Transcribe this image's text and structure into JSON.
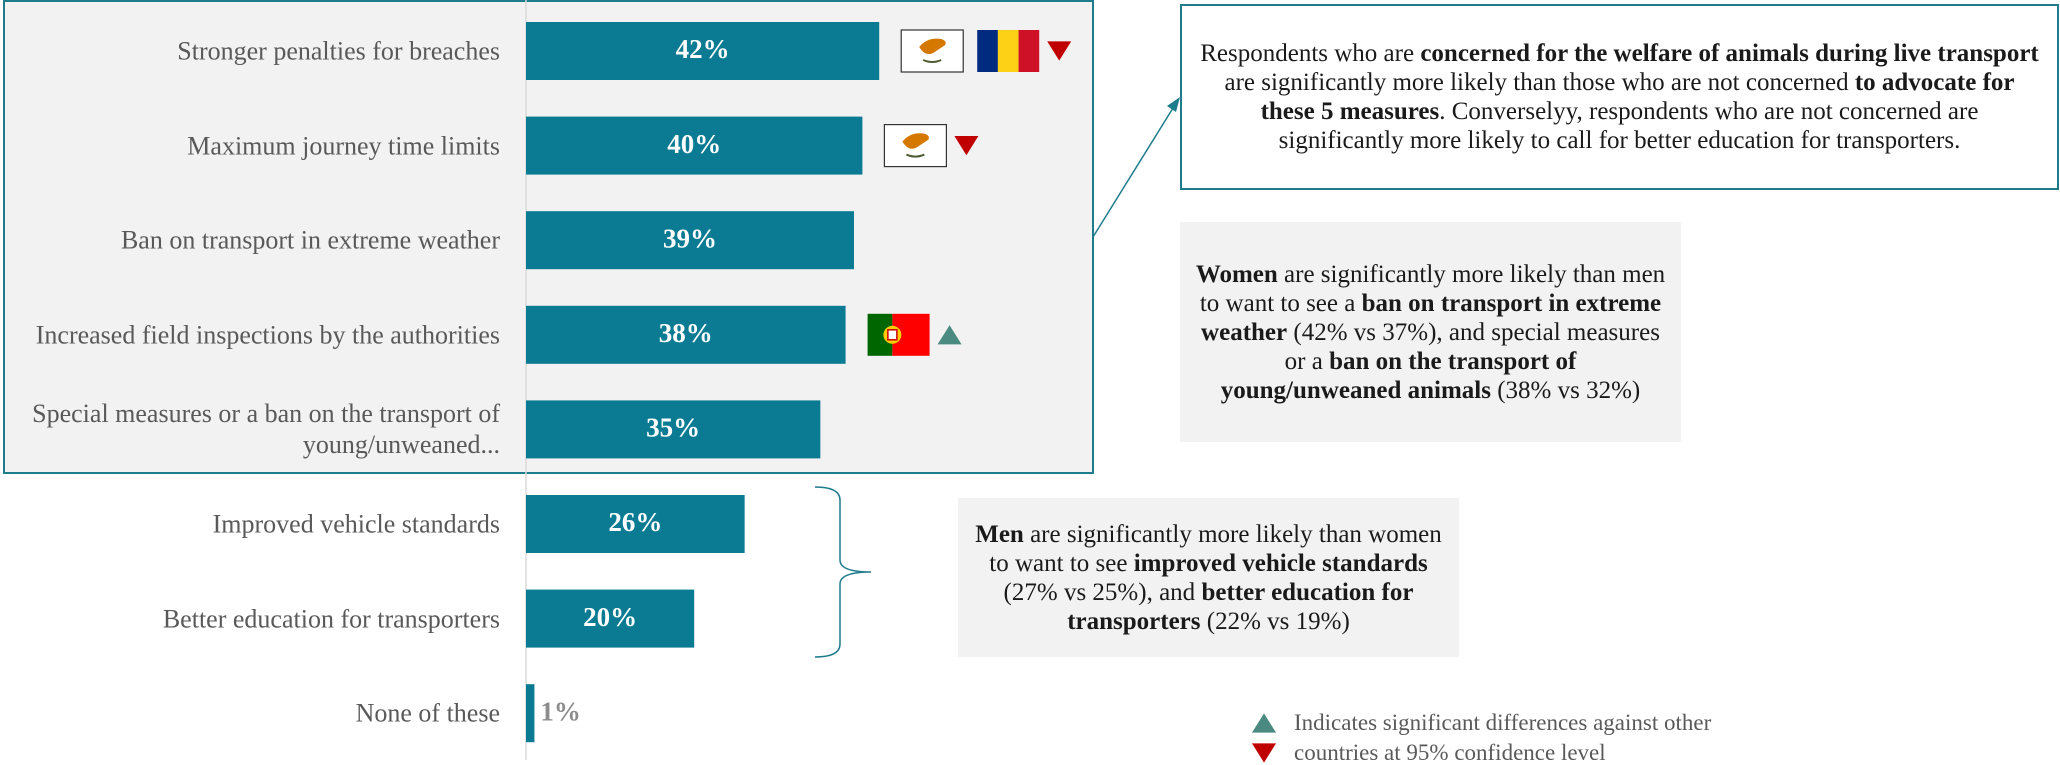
{
  "chart_data": {
    "type": "bar",
    "orientation": "horizontal",
    "categories": [
      "Stronger penalties for breaches",
      "Maximum journey time limits",
      "Ban on transport in extreme weather",
      "Increased field inspections by the authorities",
      "Special measures or a ban on the transport of young/unweaned...",
      "Improved vehicle standards",
      "Better education for transporters",
      "None of these"
    ],
    "values": [
      42,
      40,
      39,
      38,
      35,
      26,
      20,
      1
    ],
    "value_labels": [
      "42%",
      "40%",
      "39%",
      "38%",
      "35%",
      "26%",
      "20%",
      "1%"
    ],
    "color": "#0b7b93",
    "markers": [
      "down",
      "down",
      null,
      "up",
      null,
      null,
      null,
      null
    ],
    "annotations": [
      {
        "style": "outlined",
        "runs": [
          {
            "text": "Respondents who are ",
            "bold": false
          },
          {
            "text": "concerned for the welfare of animals during live transport",
            "bold": true
          },
          {
            "text": " are significantly more likely than those who are not concerned ",
            "bold": false
          },
          {
            "text": "to advocate for these 5 measures",
            "bold": true
          },
          {
            "text": ". Converselyy, respondents who are not concerned are significantly more likely to call for better education for transporters.",
            "bold": false
          }
        ]
      },
      {
        "style": "shaded",
        "runs": [
          {
            "text": "Women",
            "bold": true
          },
          {
            "text": " are significantly more likely than men to want to see a ",
            "bold": false
          },
          {
            "text": "ban on transport in extreme weather",
            "bold": true
          },
          {
            "text": " (42% vs 37%), and special measures or a ",
            "bold": false
          },
          {
            "text": "ban on the transport of young/unweaned animals",
            "bold": true
          },
          {
            "text": " (38% vs 32%)",
            "bold": false
          }
        ]
      },
      {
        "style": "shaded",
        "runs": [
          {
            "text": "Men",
            "bold": true
          },
          {
            "text": " are significantly more likely than women to want to see ",
            "bold": false
          },
          {
            "text": "improved vehicle standards",
            "bold": true
          },
          {
            "text": " (27% vs 25%), and ",
            "bold": false
          },
          {
            "text": "better education for transporters",
            "bold": true
          },
          {
            "text": " (22% vs 19%)",
            "bold": false
          }
        ]
      }
    ],
    "legend": {
      "text": "Indicates significant differences against other countries at 95% confidence level",
      "up_color": "#4a8a80",
      "down_color": "#c00000"
    }
  }
}
